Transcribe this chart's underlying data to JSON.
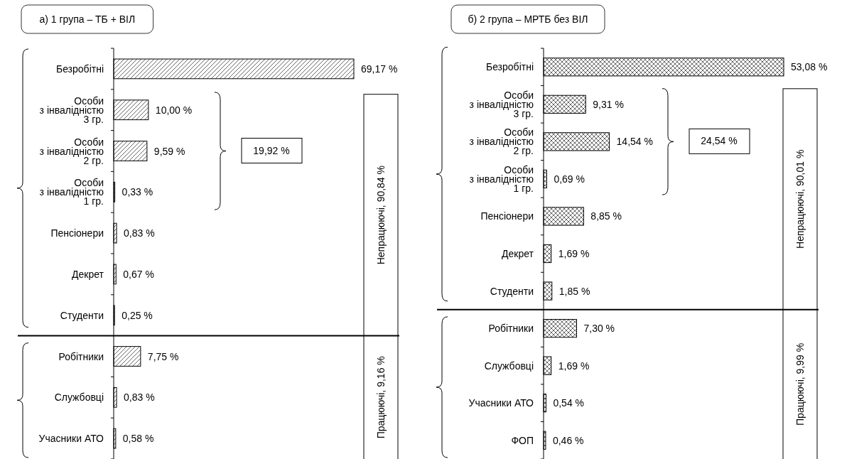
{
  "chart_data": [
    {
      "type": "bar",
      "orientation": "horizontal",
      "title": "а) 1 група – ТБ + ВІЛ",
      "categories": [
        "Безробітні",
        "Особи\nз інвалідністю\n3 гр.",
        "Особи\nз інвалідністю\n2 гр.",
        "Особи\nз інвалідністю\n1 гр.",
        "Пенсіонери",
        "Декрет",
        "Студенти",
        "Робітники",
        "Службовці",
        "Учасники АТО"
      ],
      "values": [
        69.17,
        10.0,
        9.59,
        0.33,
        0.83,
        0.67,
        0.25,
        7.75,
        0.83,
        0.58
      ],
      "value_labels": [
        "69,17 %",
        "10,00 %",
        "9,59 %",
        "0,33 %",
        "0,83 %",
        "0,67 %",
        "0,25 %",
        "7,75 %",
        "0,83 %",
        "0,58 %"
      ],
      "color": "#000000",
      "annotations": [
        "19,92 %",
        "Непрацюючі, 90,84 %",
        "Працюючі, 9,16 %"
      ]
    },
    {
      "type": "bar",
      "orientation": "horizontal",
      "title": "б) 2 група – МРТБ без ВІЛ",
      "categories": [
        "Безробітні",
        "Особи\nз інвалідністю\n3 гр.",
        "Особи\nз інвалідністю\n2 гр.",
        "Особи\nз інвалідністю\n1 гр.",
        "Пенсіонери",
        "Декрет",
        "Студенти",
        "Робітники",
        "Службовці",
        "Учасники АТО",
        "ФОП"
      ],
      "values": [
        53.08,
        9.31,
        14.54,
        0.69,
        8.85,
        1.69,
        1.85,
        7.3,
        1.69,
        0.54,
        0.46
      ],
      "value_labels": [
        "53,08 %",
        "9,31 %",
        "14,54 %",
        "0,69 %",
        "8,85 %",
        "1,69 %",
        "1,85 %",
        "7,30 %",
        "1,69 %",
        "0,54 %",
        "0,46 %"
      ],
      "color": "#000000",
      "annotations": [
        "24,54 %",
        "Непрацюючі, 90,01 %",
        "Працюючі, 9,99 %"
      ]
    }
  ]
}
